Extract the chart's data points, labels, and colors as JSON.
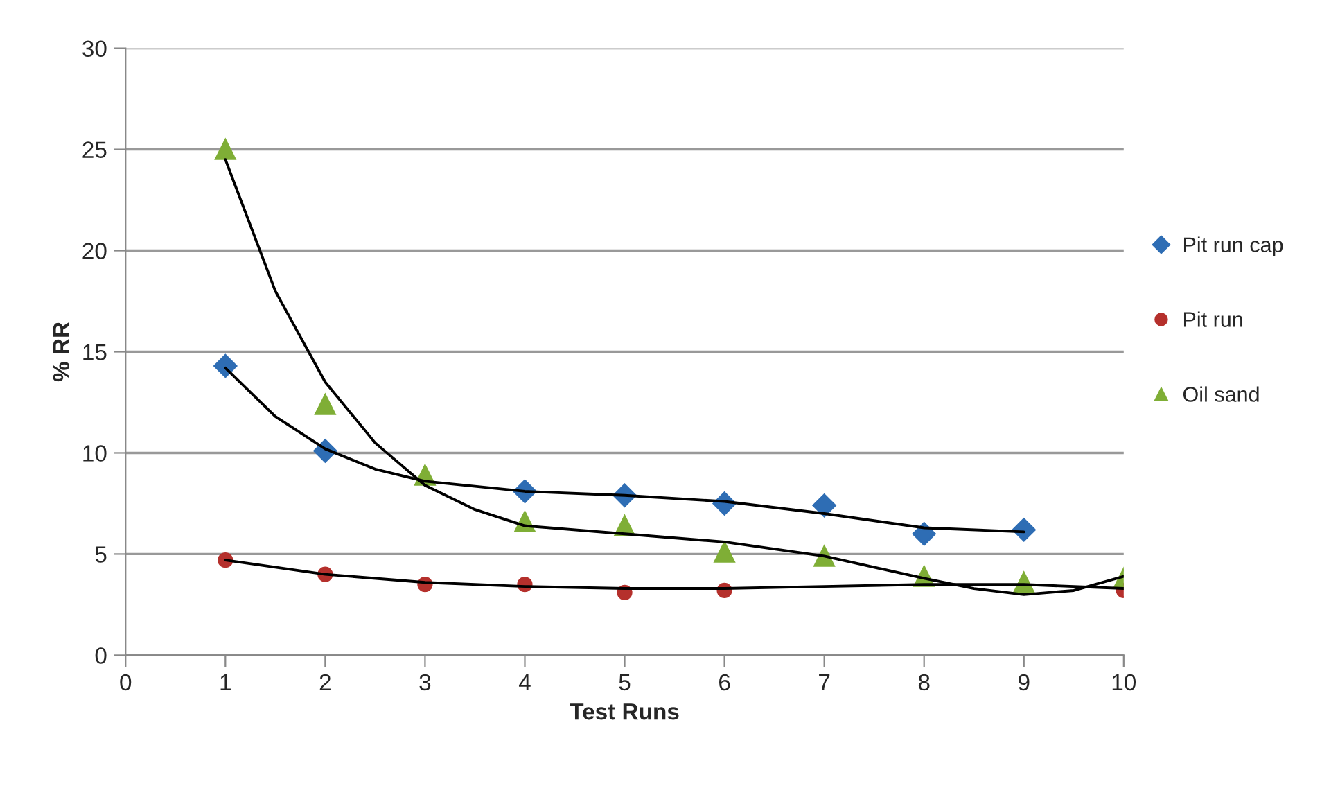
{
  "chart_data": {
    "type": "scatter",
    "xlabel": "Test Runs",
    "ylabel": "% RR",
    "x": [
      1,
      2,
      3,
      4,
      5,
      6,
      7,
      8,
      9,
      10
    ],
    "series": [
      {
        "name": "Pit run cap",
        "color": "#2e6db4",
        "marker": "diamond",
        "values": [
          14.3,
          10.1,
          null,
          8.1,
          7.9,
          7.5,
          7.4,
          6.0,
          6.2,
          null
        ]
      },
      {
        "name": "Pit run",
        "color": "#b5302c",
        "marker": "circle",
        "values": [
          4.7,
          4.0,
          3.5,
          3.5,
          3.1,
          3.2,
          null,
          null,
          null,
          3.2
        ]
      },
      {
        "name": "Oil sand",
        "color": "#7fae36",
        "marker": "triangle",
        "values": [
          25,
          12.4,
          8.9,
          6.6,
          6.4,
          5.1,
          4.9,
          3.9,
          3.6,
          3.8
        ]
      },
      {
        "type": "line",
        "color": "#000000",
        "x": [
          1,
          1.5,
          2,
          2.5,
          3,
          4,
          5,
          6,
          7,
          8,
          9
        ],
        "values": [
          14.2,
          11.8,
          10.2,
          9.2,
          8.6,
          8.1,
          7.9,
          7.6,
          7.0,
          6.3,
          6.1
        ]
      },
      {
        "type": "line",
        "color": "#000000",
        "x": [
          1,
          2,
          3,
          4,
          5,
          6,
          7,
          8,
          9,
          10
        ],
        "values": [
          4.7,
          4.0,
          3.6,
          3.4,
          3.3,
          3.3,
          3.4,
          3.5,
          3.5,
          3.3
        ]
      },
      {
        "type": "line",
        "color": "#000000",
        "x": [
          1,
          1.5,
          2,
          2.5,
          3,
          3.5,
          4,
          5,
          6,
          7,
          8,
          8.5,
          9,
          9.5,
          10
        ],
        "values": [
          24.5,
          18,
          13.5,
          10.5,
          8.4,
          7.2,
          6.4,
          6.0,
          5.6,
          4.9,
          3.8,
          3.3,
          3.0,
          3.2,
          3.9
        ]
      }
    ],
    "xlim": [
      0,
      10
    ],
    "xticks": [
      0,
      1,
      2,
      3,
      4,
      5,
      6,
      7,
      8,
      9,
      10
    ],
    "ylim": [
      0,
      30
    ],
    "yticks": [
      0,
      5,
      10,
      15,
      20,
      25,
      30
    ],
    "grid": "y",
    "legend": "right"
  }
}
